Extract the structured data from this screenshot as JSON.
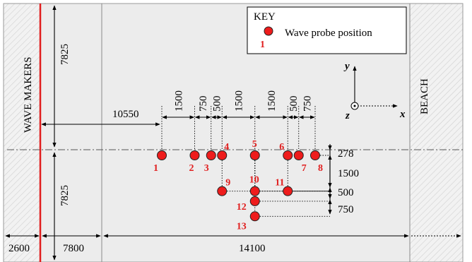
{
  "walls": {
    "left_label": "WAVE MAKERS",
    "right_label": "BEACH"
  },
  "key": {
    "title": "KEY",
    "entry_label": "Wave probe position",
    "entry_number": "1"
  },
  "axes": {
    "x": "x",
    "y": "y",
    "z": "z"
  },
  "dims": {
    "upper_width": "7825",
    "lower_width": "7825",
    "to_first_probe": "10550",
    "probe_spacing": [
      "1500",
      "750",
      "500",
      "1500",
      "1500",
      "500",
      "750"
    ],
    "offset_row2": "278",
    "offset_row3": "1500",
    "offset_row4": "500",
    "offset_row5": "750",
    "bottom": [
      "2600",
      "7800",
      "14100"
    ]
  },
  "probes": [
    {
      "id": "1",
      "x": 0,
      "y": 0
    },
    {
      "id": "2",
      "x": 1500,
      "y": 0
    },
    {
      "id": "3",
      "x": 2250,
      "y": 0
    },
    {
      "id": "4",
      "x": 2750,
      "y": 0
    },
    {
      "id": "5",
      "x": 4250,
      "y": 0
    },
    {
      "id": "6",
      "x": 5750,
      "y": 0
    },
    {
      "id": "7",
      "x": 6250,
      "y": 0
    },
    {
      "id": "8",
      "x": 7000,
      "y": 0
    },
    {
      "id": "9",
      "x": 2750,
      "y": -1778
    },
    {
      "id": "10",
      "x": 4250,
      "y": -1778
    },
    {
      "id": "11",
      "x": 5750,
      "y": -1778
    },
    {
      "id": "12",
      "x": 4250,
      "y": -2278
    },
    {
      "id": "13",
      "x": 4250,
      "y": -3028
    }
  ],
  "colors": {
    "probe": "#ee1c1c",
    "wavemaker_line": "#e01e1e",
    "tank": "#ececec",
    "label": "#e01e1e"
  }
}
